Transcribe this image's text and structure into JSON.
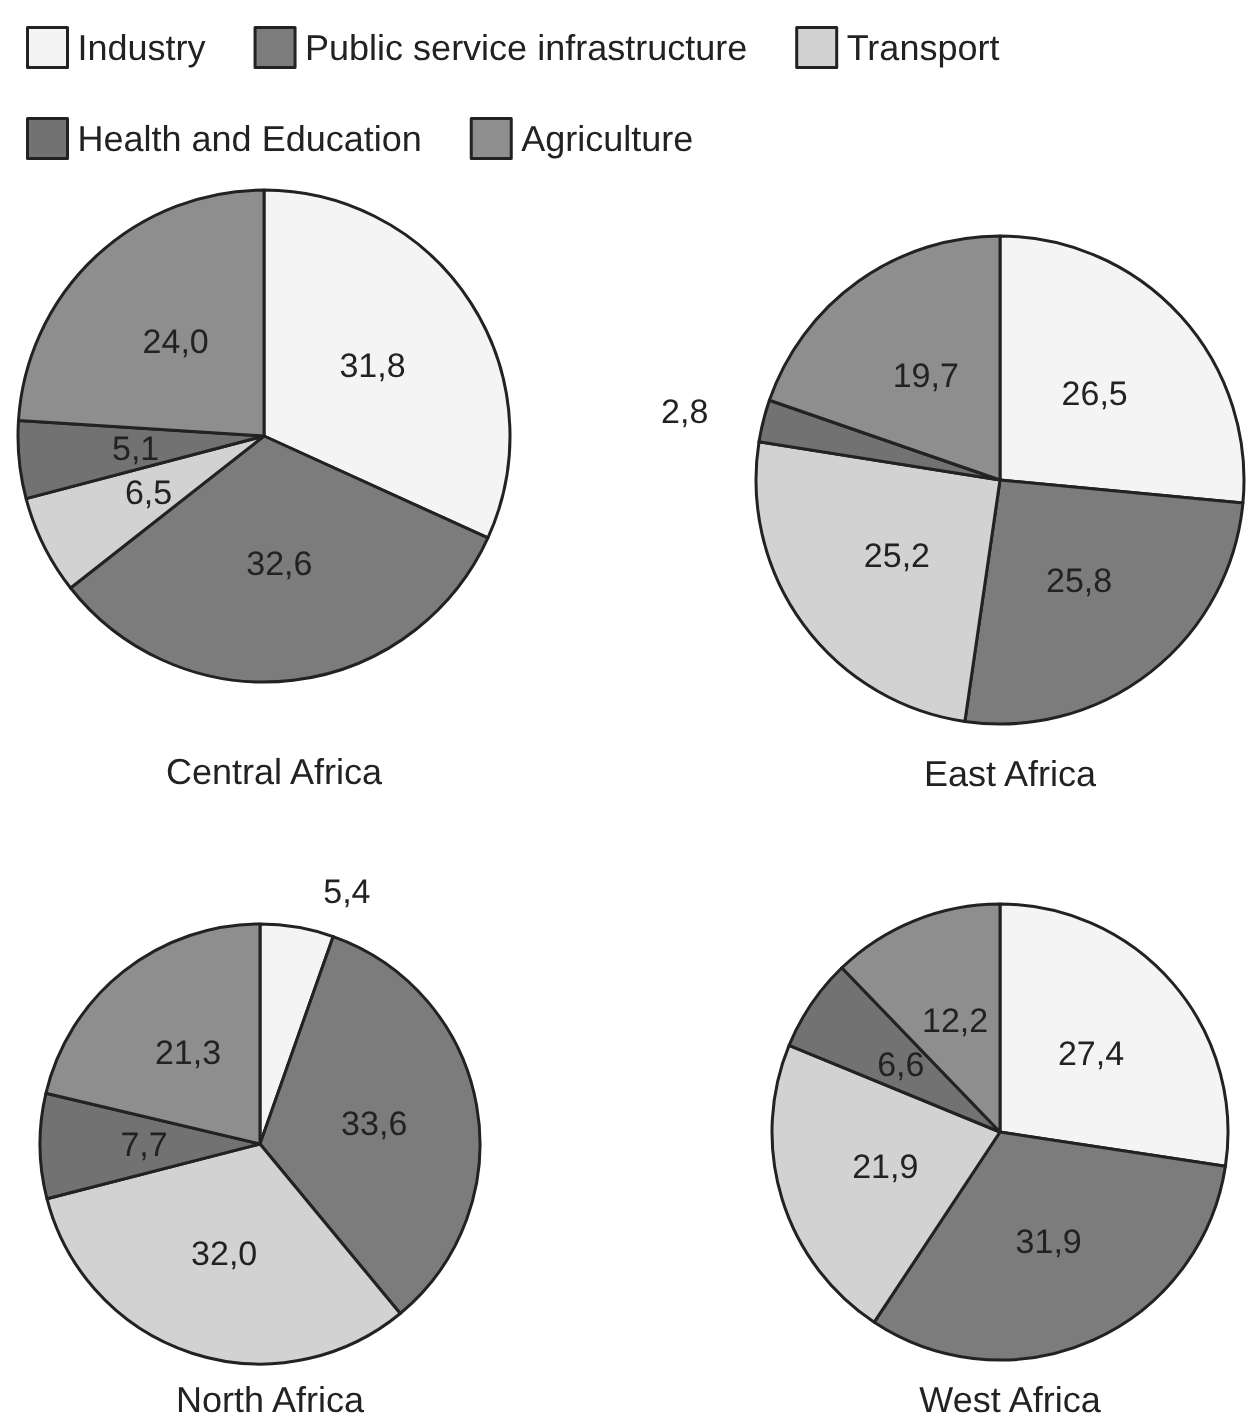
{
  "chart_data": [
    {
      "type": "pie",
      "title": "Central Africa",
      "legend": "top",
      "categories": [
        "Industry",
        "Public service infrastructure",
        "Transport",
        "Health and Education",
        "Agriculture"
      ],
      "values": [
        31.8,
        32.6,
        6.5,
        5.1,
        24.0
      ],
      "value_labels": [
        "31,8",
        "32,6",
        "6,5",
        "5,1",
        "24,0"
      ],
      "colors": [
        "#f4f4f4",
        "#7c7c7c",
        "#d2d2d2",
        "#727272",
        "#8e8e8e"
      ]
    },
    {
      "type": "pie",
      "title": "East Africa",
      "categories": [
        null,
        null,
        null,
        null,
        null
      ],
      "values": [
        26.5,
        25.8,
        25.2,
        2.8,
        19.7
      ],
      "value_labels": [
        "26,5",
        "25,8",
        "25,2",
        "2,8",
        "19,7"
      ],
      "colors": [
        "#f4f4f4",
        "#7c7c7c",
        "#d2d2d2",
        "#727272",
        "#8e8e8e"
      ]
    },
    {
      "type": "pie",
      "title": "North Africa",
      "categories": [
        null,
        null,
        null,
        null,
        null
      ],
      "values": [
        5.4,
        33.6,
        32.0,
        7.7,
        21.3
      ],
      "value_labels": [
        "5,4",
        "33,6",
        "32,0",
        "7,7",
        "21,3"
      ],
      "colors": [
        "#f4f4f4",
        "#7c7c7c",
        "#d2d2d2",
        "#727272",
        "#8e8e8e"
      ]
    },
    {
      "type": "pie",
      "title": "West Africa",
      "categories": [
        null,
        null,
        null,
        null,
        null
      ],
      "values": [
        27.4,
        31.9,
        21.9,
        6.6,
        12.2
      ],
      "value_labels": [
        "27,4",
        "31,9",
        "21,9",
        "6,6",
        "12,2"
      ],
      "colors": [
        "#f4f4f4",
        "#7c7c7c",
        "#d2d2d2",
        "#727272",
        "#8e8e8e"
      ]
    }
  ]
}
